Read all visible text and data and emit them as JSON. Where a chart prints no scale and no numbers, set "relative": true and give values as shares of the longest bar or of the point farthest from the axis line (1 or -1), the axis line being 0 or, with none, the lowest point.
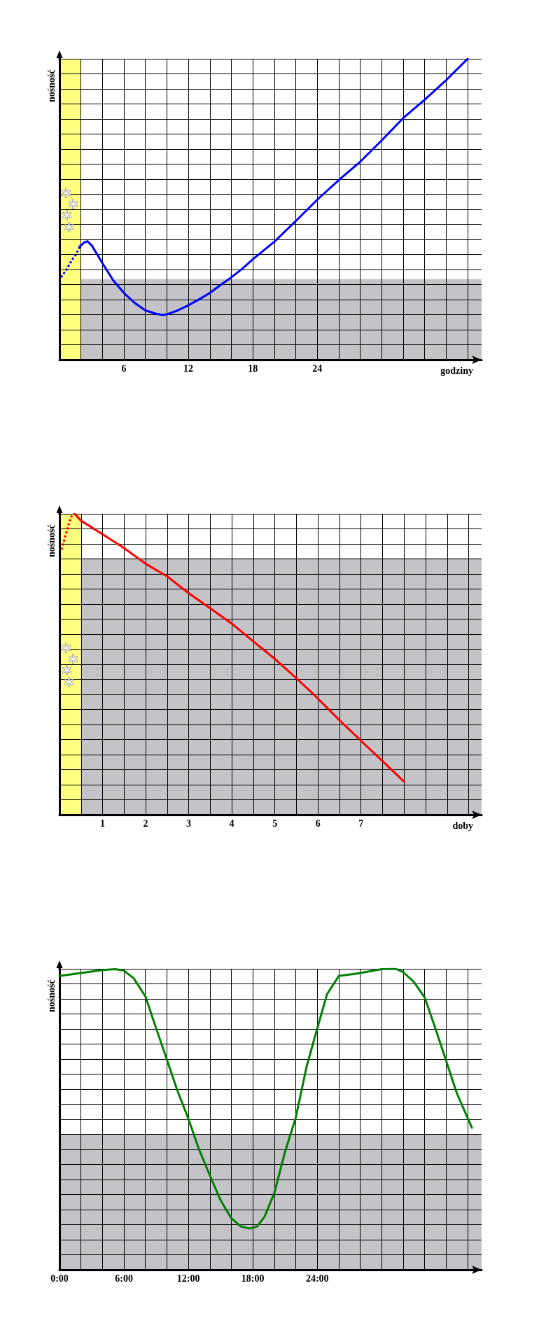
{
  "chart_data": [
    {
      "type": "line",
      "relative": true,
      "xlabel": "godziny",
      "ylabel": "nośność",
      "xlim": [
        0,
        39.3
      ],
      "xticks": [
        {
          "value": 2,
          "label": null
        },
        {
          "value": 4,
          "label": null
        },
        6,
        {
          "value": 8,
          "label": null
        },
        {
          "value": 10,
          "label": null
        },
        12,
        {
          "value": 14,
          "label": null
        },
        {
          "value": 16,
          "label": null
        },
        18,
        {
          "value": 20,
          "label": null
        },
        {
          "value": 22,
          "label": null
        },
        24,
        {
          "value": 26,
          "label": null
        },
        {
          "value": 28,
          "label": null
        },
        {
          "value": 30,
          "label": null
        },
        {
          "value": 32,
          "label": null
        },
        {
          "value": 34,
          "label": null
        },
        {
          "value": 36,
          "label": null
        },
        {
          "value": 38,
          "label": null
        }
      ],
      "grid": true,
      "bands": [
        {
          "axis": "y",
          "from": 0,
          "to": 0.268,
          "color": "#c4c3c8"
        },
        {
          "axis": "x",
          "from": 0,
          "to": 2,
          "color": "#ffff80"
        }
      ],
      "series": [
        {
          "color": "#0000ff",
          "line_style": "dotted",
          "x": [
            0.15,
            0.65,
            1.1,
            1.5,
            1.9
          ],
          "values": [
            0.274,
            0.3,
            0.328,
            0.348,
            0.377
          ]
        },
        {
          "color": "#0000ff",
          "line_style": "solid",
          "x": [
            1.9,
            2.3,
            2.6,
            3,
            4,
            5,
            6,
            7,
            8,
            9,
            9.6,
            10,
            11,
            12,
            13,
            14,
            15,
            16,
            17,
            18,
            20,
            22,
            24,
            26,
            28,
            30,
            32,
            34,
            36,
            38
          ],
          "values": [
            0.377,
            0.39,
            0.394,
            0.38,
            0.321,
            0.264,
            0.222,
            0.189,
            0.164,
            0.153,
            0.149,
            0.151,
            0.164,
            0.181,
            0.201,
            0.222,
            0.249,
            0.274,
            0.302,
            0.334,
            0.392,
            0.461,
            0.532,
            0.597,
            0.658,
            0.729,
            0.803,
            0.864,
            0.929,
            1
          ]
        }
      ]
    },
    {
      "type": "line",
      "relative": true,
      "xlabel": "doby",
      "ylabel": "nośność",
      "xlim": [
        0,
        9.8
      ],
      "xticks": [
        {
          "value": 0.5,
          "label": null
        },
        1,
        {
          "value": 1.5,
          "label": null
        },
        2,
        {
          "value": 2.5,
          "label": null
        },
        3,
        {
          "value": 3.5,
          "label": null
        },
        4,
        {
          "value": 4.5,
          "label": null
        },
        5,
        {
          "value": 5.5,
          "label": null
        },
        6,
        {
          "value": 6.5,
          "label": null
        },
        7,
        {
          "value": 7.5,
          "label": null
        },
        {
          "value": 8,
          "label": null
        },
        {
          "value": 8.5,
          "label": null
        },
        {
          "value": 9,
          "label": null
        },
        {
          "value": 9.5,
          "label": null
        }
      ],
      "grid": true,
      "bands": [
        {
          "axis": "y",
          "from": 0,
          "to": 0.853,
          "color": "#c4c3c8"
        },
        {
          "axis": "x",
          "from": 0,
          "to": 0.5,
          "color": "#ffff80"
        }
      ],
      "series": [
        {
          "color": "#ff0000",
          "line_style": "dotted",
          "x": [
            0.05,
            0.12,
            0.17,
            0.23,
            0.29,
            0.35
          ],
          "values": [
            0.881,
            0.918,
            0.944,
            0.974,
            0.995,
            1
          ]
        },
        {
          "color": "#ff0000",
          "line_style": "solid",
          "x": [
            0.35,
            0.5,
            1,
            1.5,
            2,
            2.5,
            3,
            3.5,
            4,
            4.5,
            5,
            5.5,
            6,
            6.5,
            7,
            7.5,
            8
          ],
          "values": [
            1,
            0.977,
            0.932,
            0.886,
            0.834,
            0.792,
            0.736,
            0.686,
            0.635,
            0.576,
            0.518,
            0.454,
            0.386,
            0.314,
            0.246,
            0.178,
            0.11
          ]
        }
      ]
    },
    {
      "type": "line",
      "relative": true,
      "ylabel": "nośność",
      "xlim": [
        0,
        39.3
      ],
      "xticks": [
        {
          "value": 0,
          "label": "0:00"
        },
        {
          "value": 2,
          "label": null
        },
        {
          "value": 4,
          "label": null
        },
        {
          "value": 6,
          "label": "6:00"
        },
        {
          "value": 8,
          "label": null
        },
        {
          "value": 10,
          "label": null
        },
        {
          "value": 12,
          "label": "12:00"
        },
        {
          "value": 14,
          "label": null
        },
        {
          "value": 16,
          "label": null
        },
        {
          "value": 18,
          "label": "18:00"
        },
        {
          "value": 20,
          "label": null
        },
        {
          "value": 22,
          "label": null
        },
        {
          "value": 24,
          "label": "24:00"
        },
        {
          "value": 26,
          "label": null
        },
        {
          "value": 28,
          "label": null
        },
        {
          "value": 30,
          "label": null
        },
        {
          "value": 32,
          "label": null
        },
        {
          "value": 34,
          "label": null
        },
        {
          "value": 36,
          "label": null
        },
        {
          "value": 38,
          "label": null
        }
      ],
      "grid": true,
      "bands": [
        {
          "axis": "y",
          "from": 0,
          "to": 0.451,
          "color": "#c4c3c8"
        }
      ],
      "series": [
        {
          "color": "#008000",
          "line_style": "solid",
          "x": [
            0,
            2,
            4,
            5.2,
            6,
            6.9,
            8,
            9,
            10,
            11,
            12,
            13,
            14,
            15,
            16,
            16.9,
            17.7,
            18.4,
            19.1,
            20,
            21,
            22,
            23,
            24,
            24.9,
            26,
            28,
            30,
            31.3,
            32,
            33,
            34,
            35,
            36,
            37,
            38.4
          ],
          "values": [
            0.976,
            0.986,
            0.996,
            0.999,
            0.994,
            0.969,
            0.908,
            0.802,
            0.698,
            0.593,
            0.502,
            0.399,
            0.314,
            0.231,
            0.171,
            0.144,
            0.137,
            0.144,
            0.177,
            0.255,
            0.392,
            0.506,
            0.674,
            0.802,
            0.915,
            0.976,
            0.986,
            0.999,
            1,
            0.989,
            0.956,
            0.905,
            0.802,
            0.694,
            0.586,
            0.472
          ]
        }
      ]
    }
  ]
}
